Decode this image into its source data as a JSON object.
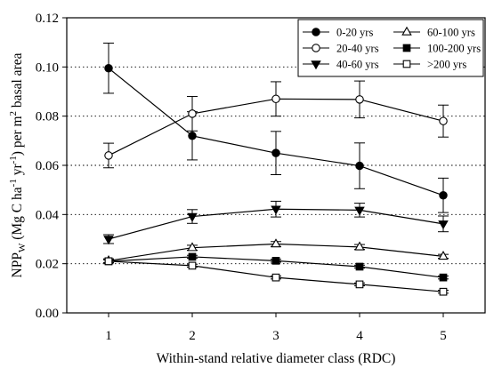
{
  "chart_data": {
    "type": "line",
    "title": "",
    "xlabel": "Within-stand relative diameter class (RDC)",
    "ylabel": {
      "base": "NPP",
      "sub": "W",
      "part1": " (Mg C ha",
      "sup1": "-1",
      "part2": " yr",
      "sup2": "-1",
      "part3": ") per m",
      "sup3": "2",
      "part4": " basal area"
    },
    "x": [
      1,
      2,
      3,
      4,
      5
    ],
    "xlim": [
      0.5,
      5.5
    ],
    "ylim": [
      0,
      0.12
    ],
    "yticks": [
      "0.00",
      "0.02",
      "0.04",
      "0.06",
      "0.08",
      "0.10",
      "0.12"
    ],
    "xticks": [
      "1",
      "2",
      "3",
      "4",
      "5"
    ],
    "grid": "horizontal dotted",
    "legend_position": "top-right",
    "series": [
      {
        "name": "0-20 yrs",
        "marker": "circle-filled",
        "values": [
          0.0995,
          0.072,
          0.065,
          0.0598,
          0.0478
        ],
        "errors": [
          0.0102,
          0.0098,
          0.0088,
          0.0093,
          0.007
        ]
      },
      {
        "name": "20-40 yrs",
        "marker": "circle-open",
        "values": [
          0.064,
          0.081,
          0.087,
          0.0868,
          0.078
        ],
        "errors": [
          0.005,
          0.007,
          0.007,
          0.0075,
          0.0065
        ]
      },
      {
        "name": "40-60 yrs",
        "marker": "triangle-down-filled",
        "values": [
          0.03,
          0.0392,
          0.0422,
          0.0418,
          0.0362
        ],
        "errors": [
          0.0018,
          0.0028,
          0.0032,
          0.0028,
          0.0032
        ]
      },
      {
        "name": "60-100 yrs",
        "marker": "triangle-up-open",
        "values": [
          0.0212,
          0.0265,
          0.028,
          0.0268,
          0.023
        ],
        "errors": [
          0.0008,
          0.001,
          0.001,
          0.001,
          0.0008
        ]
      },
      {
        "name": "100-200 yrs",
        "marker": "square-filled",
        "values": [
          0.021,
          0.0228,
          0.0212,
          0.0188,
          0.0144
        ],
        "errors": [
          0.0006,
          0.0006,
          0.0006,
          0.0006,
          0.0006
        ]
      },
      {
        "name": ">200 yrs",
        "marker": "square-open",
        "values": [
          0.021,
          0.0192,
          0.0144,
          0.0116,
          0.0086
        ],
        "errors": [
          0.0006,
          0.0006,
          0.0006,
          0.0006,
          0.0006
        ]
      }
    ]
  }
}
